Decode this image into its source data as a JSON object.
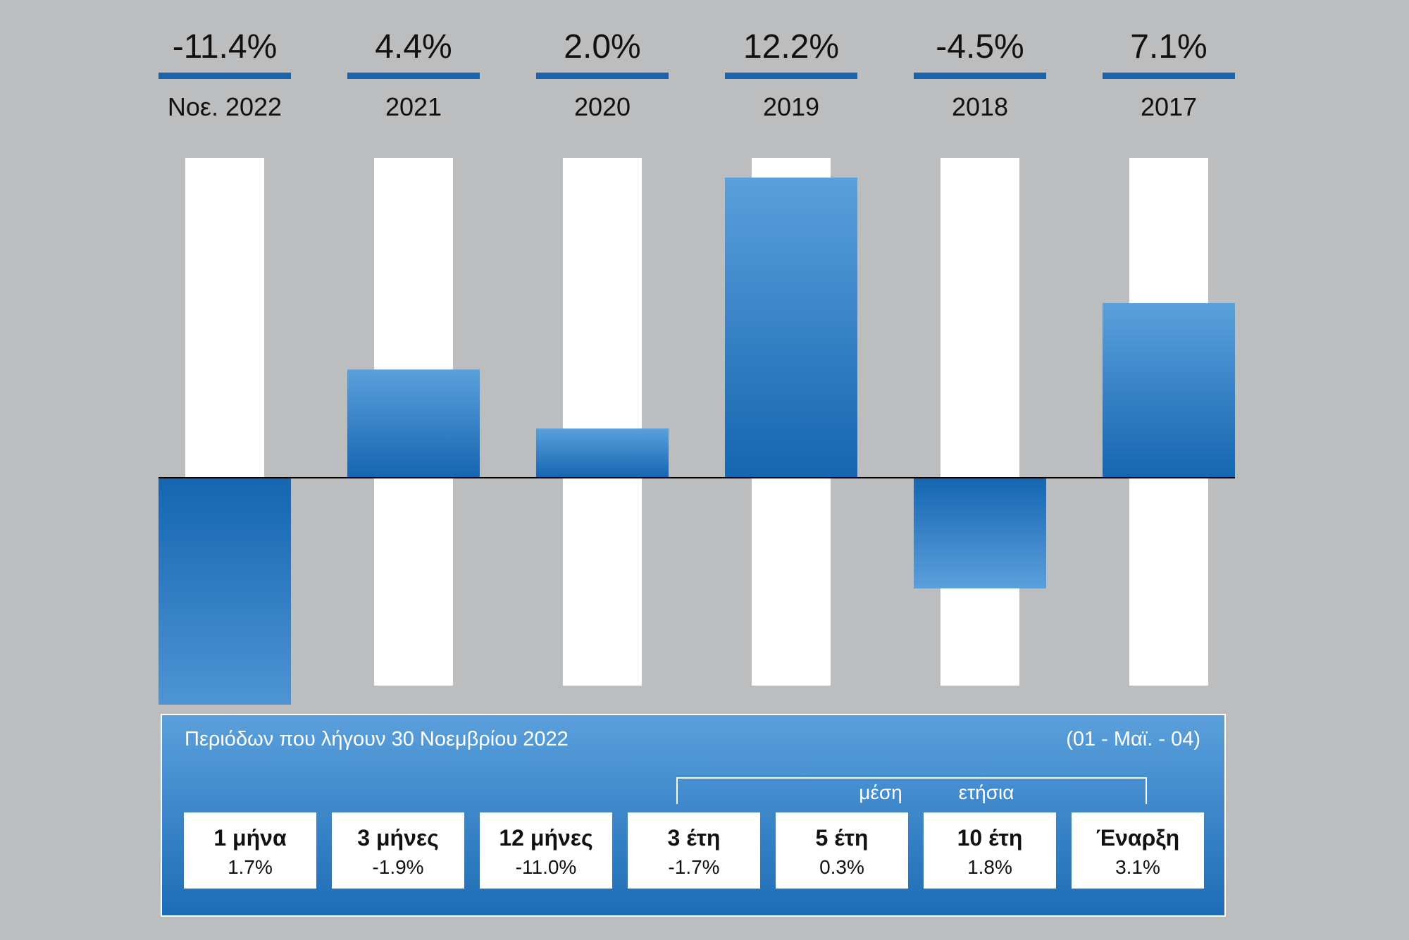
{
  "chart_data": {
    "type": "bar",
    "categories": [
      "Νοε. 2022",
      "2021",
      "2020",
      "2019",
      "2018",
      "2017"
    ],
    "values": [
      -11.4,
      4.4,
      2.0,
      12.2,
      -4.5,
      7.1
    ],
    "value_labels": [
      "-11.4%",
      "4.4%",
      "2.0%",
      "12.2%",
      "-4.5%",
      "7.1%"
    ],
    "ylim": [
      -8.4,
      13.0
    ],
    "grid": false,
    "colors": {
      "bar_top": "#5ba0dc",
      "bar_bottom": "#1565b0",
      "track": "#ffffff",
      "underline": "#1a63ae",
      "background": "#bcbdbf"
    }
  },
  "summary": {
    "caption": "Περιόδων που λήγουν 30 Νοεμβρίου 2022",
    "code": "(01 - Μαϊ. - 04)",
    "average_word_1": "μέση",
    "average_word_2": "ετήσια",
    "periods": [
      {
        "label": "1 μήνα",
        "value": "1.7%"
      },
      {
        "label": "3 μήνες",
        "value": "-1.9%"
      },
      {
        "label": "12 μήνες",
        "value": "-11.0%"
      },
      {
        "label": "3 έτη",
        "value": "-1.7%"
      },
      {
        "label": "5 έτη",
        "value": "0.3%"
      },
      {
        "label": "10 έτη",
        "value": "1.8%"
      },
      {
        "label": "Έναρξη",
        "value": "3.1%"
      }
    ]
  }
}
